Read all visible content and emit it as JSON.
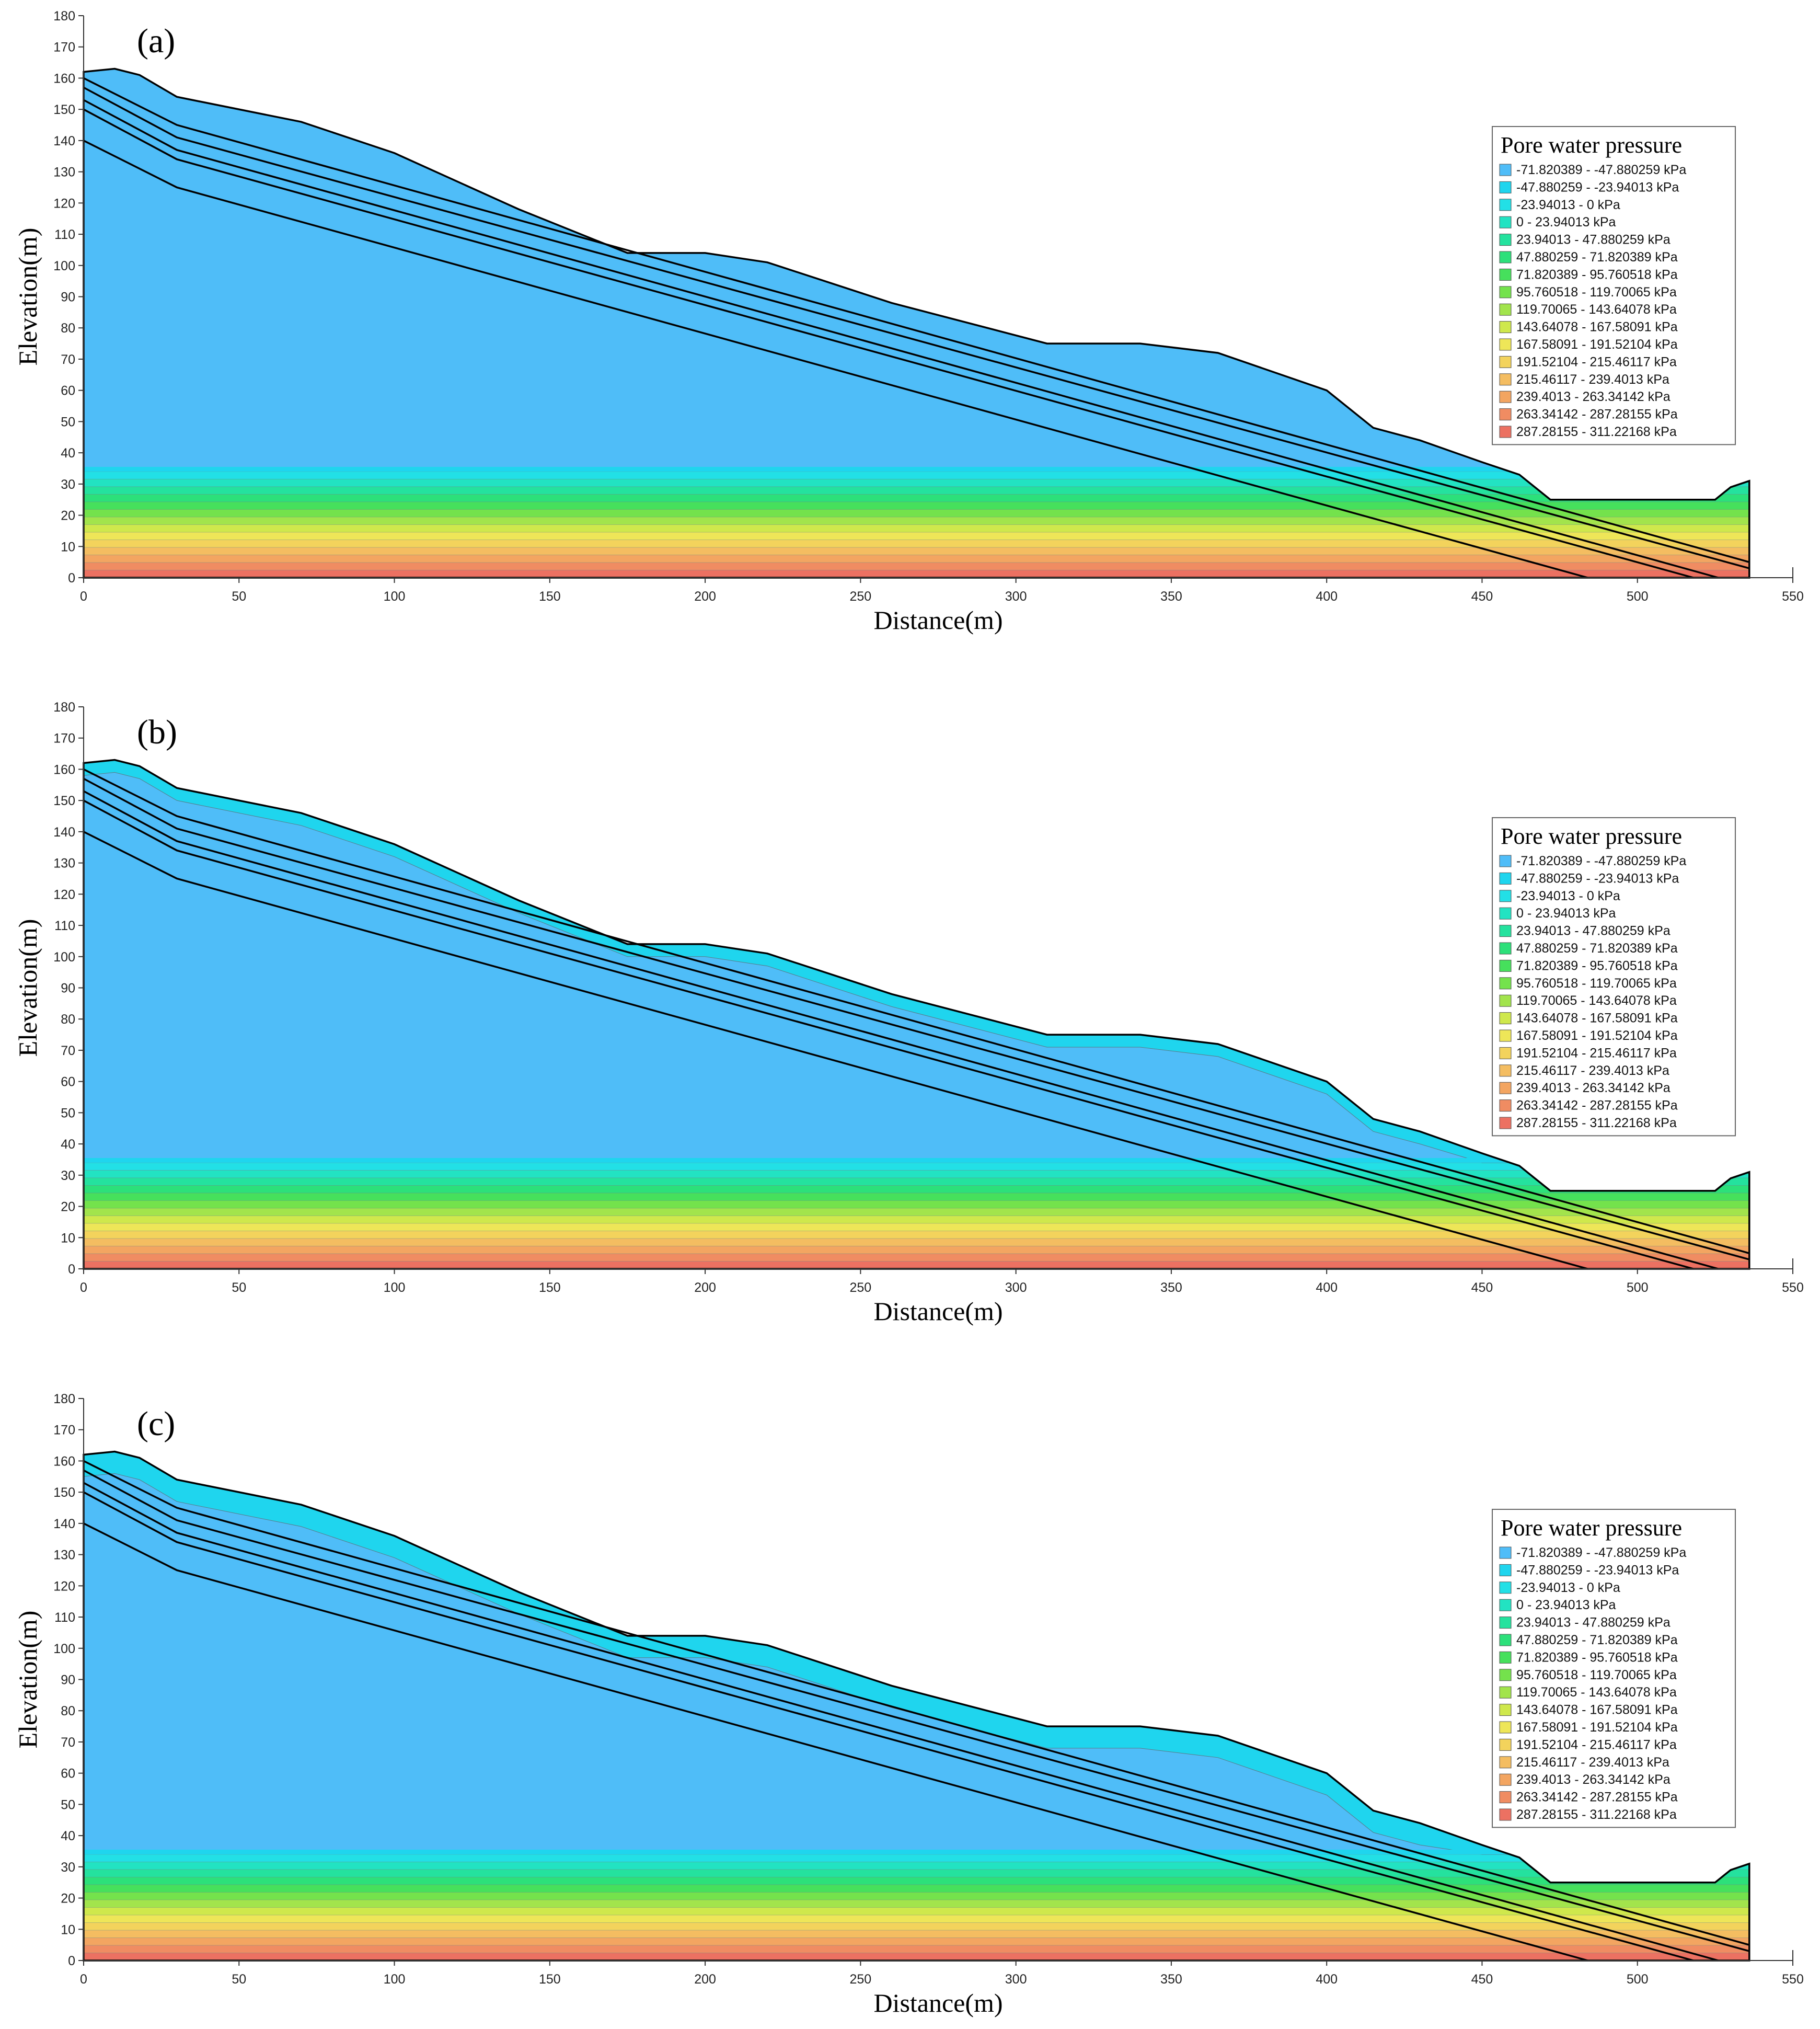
{
  "colors": {
    "band_surface": "#4fbdf8",
    "band_near_surface": "#1fd5ee",
    "bands_below_water_table": [
      "#22e0e6",
      "#22e3c2",
      "#24e29e",
      "#2ce07a",
      "#46e05c",
      "#74e24c",
      "#a2e44c",
      "#cfe84c",
      "#eee658",
      "#f3d35c",
      "#f4bd61",
      "#f3a561",
      "#f08c62",
      "#ec7162"
    ]
  },
  "chart_data": [
    {
      "type": "area",
      "panel_label": "(a)",
      "xlabel": "Distance(m)",
      "ylabel": "Elevation(m)",
      "xlim": [
        0,
        550
      ],
      "ylim": [
        0,
        180
      ],
      "x_ticks": [
        0,
        50,
        100,
        150,
        200,
        250,
        300,
        350,
        400,
        450,
        500,
        550
      ],
      "y_ticks": [
        0,
        10,
        20,
        30,
        40,
        50,
        60,
        70,
        80,
        90,
        100,
        110,
        120,
        130,
        140,
        150,
        160,
        170,
        180
      ],
      "grid": false,
      "legend_placement": "right",
      "legend": {
        "title": "Pore water pressure",
        "entries": [
          {
            "label": "-71.820389 - -47.880259 kPa",
            "color": "#4fbdf8"
          },
          {
            "label": "-47.880259 - -23.94013 kPa",
            "color": "#1fd5ee"
          },
          {
            "label": "-23.94013 - 0 kPa",
            "color": "#22e0e6"
          },
          {
            "label": "0 - 23.94013 kPa",
            "color": "#22e3c2"
          },
          {
            "label": "23.94013 - 47.880259 kPa",
            "color": "#24e29e"
          },
          {
            "label": "47.880259 - 71.820389 kPa",
            "color": "#2ce07a"
          },
          {
            "label": "71.820389 - 95.760518 kPa",
            "color": "#46e05c"
          },
          {
            "label": "95.760518 - 119.70065 kPa",
            "color": "#74e24c"
          },
          {
            "label": "119.70065 - 143.64078 kPa",
            "color": "#a2e44c"
          },
          {
            "label": "143.64078 - 167.58091 kPa",
            "color": "#cfe84c"
          },
          {
            "label": "167.58091 - 191.52104 kPa",
            "color": "#eee658"
          },
          {
            "label": "191.52104 - 215.46117 kPa",
            "color": "#f3d35c"
          },
          {
            "label": "215.46117 - 239.4013 kPa",
            "color": "#f4bd61"
          },
          {
            "label": "239.4013 - 263.34142 kPa",
            "color": "#f3a561"
          },
          {
            "label": "263.34142 - 287.28155 kPa",
            "color": "#f08c62"
          },
          {
            "label": "287.28155 - 311.22168 kPa",
            "color": "#ec7162"
          }
        ]
      },
      "ground_surface": [
        [
          0,
          162
        ],
        [
          10,
          163
        ],
        [
          18,
          161
        ],
        [
          30,
          154
        ],
        [
          70,
          146
        ],
        [
          100,
          136
        ],
        [
          140,
          118
        ],
        [
          175,
          104
        ],
        [
          200,
          104
        ],
        [
          220,
          101
        ],
        [
          260,
          88
        ],
        [
          310,
          75
        ],
        [
          340,
          75
        ],
        [
          365,
          72
        ],
        [
          400,
          60
        ],
        [
          415,
          48
        ],
        [
          430,
          44
        ],
        [
          450,
          37
        ],
        [
          462,
          33
        ],
        [
          472,
          25
        ],
        [
          525,
          25
        ],
        [
          530,
          29
        ],
        [
          536,
          31
        ],
        [
          536,
          0
        ]
      ],
      "layer_boundaries": [
        [
          [
            0,
            160
          ],
          [
            30,
            145
          ],
          [
            536,
            5
          ]
        ],
        [
          [
            0,
            157
          ],
          [
            30,
            141
          ],
          [
            536,
            3
          ]
        ],
        [
          [
            0,
            153
          ],
          [
            30,
            137
          ],
          [
            526,
            0
          ]
        ],
        [
          [
            0,
            150
          ],
          [
            30,
            134
          ],
          [
            518,
            0
          ]
        ],
        [
          [
            0,
            140
          ],
          [
            30,
            125
          ],
          [
            484,
            0
          ]
        ]
      ],
      "water_table_elevation": 34,
      "near_surface_zone_depth": 0
    },
    {
      "type": "area",
      "panel_label": "(b)",
      "xlabel": "Distance(m)",
      "ylabel": "Elevation(m)",
      "xlim": [
        0,
        550
      ],
      "ylim": [
        0,
        180
      ],
      "x_ticks": [
        0,
        50,
        100,
        150,
        200,
        250,
        300,
        350,
        400,
        450,
        500,
        550
      ],
      "y_ticks": [
        0,
        10,
        20,
        30,
        40,
        50,
        60,
        70,
        80,
        90,
        100,
        110,
        120,
        130,
        140,
        150,
        160,
        170,
        180
      ],
      "grid": false,
      "legend_placement": "right",
      "legend": {
        "title": "Pore water pressure",
        "entries": [
          {
            "label": "-71.820389 - -47.880259 kPa",
            "color": "#4fbdf8"
          },
          {
            "label": "-47.880259 - -23.94013 kPa",
            "color": "#1fd5ee"
          },
          {
            "label": "-23.94013 - 0 kPa",
            "color": "#22e0e6"
          },
          {
            "label": "0 - 23.94013 kPa",
            "color": "#22e3c2"
          },
          {
            "label": "23.94013 - 47.880259 kPa",
            "color": "#24e29e"
          },
          {
            "label": "47.880259 - 71.820389 kPa",
            "color": "#2ce07a"
          },
          {
            "label": "71.820389 - 95.760518 kPa",
            "color": "#46e05c"
          },
          {
            "label": "95.760518 - 119.70065 kPa",
            "color": "#74e24c"
          },
          {
            "label": "119.70065 - 143.64078 kPa",
            "color": "#a2e44c"
          },
          {
            "label": "143.64078 - 167.58091 kPa",
            "color": "#cfe84c"
          },
          {
            "label": "167.58091 - 191.52104 kPa",
            "color": "#eee658"
          },
          {
            "label": "191.52104 - 215.46117 kPa",
            "color": "#f3d35c"
          },
          {
            "label": "215.46117 - 239.4013 kPa",
            "color": "#f4bd61"
          },
          {
            "label": "239.4013 - 263.34142 kPa",
            "color": "#f3a561"
          },
          {
            "label": "263.34142 - 287.28155 kPa",
            "color": "#f08c62"
          },
          {
            "label": "287.28155 - 311.22168 kPa",
            "color": "#ec7162"
          }
        ]
      },
      "ground_surface": [
        [
          0,
          162
        ],
        [
          10,
          163
        ],
        [
          18,
          161
        ],
        [
          30,
          154
        ],
        [
          70,
          146
        ],
        [
          100,
          136
        ],
        [
          140,
          118
        ],
        [
          175,
          104
        ],
        [
          200,
          104
        ],
        [
          220,
          101
        ],
        [
          260,
          88
        ],
        [
          310,
          75
        ],
        [
          340,
          75
        ],
        [
          365,
          72
        ],
        [
          400,
          60
        ],
        [
          415,
          48
        ],
        [
          430,
          44
        ],
        [
          450,
          37
        ],
        [
          462,
          33
        ],
        [
          472,
          25
        ],
        [
          525,
          25
        ],
        [
          530,
          29
        ],
        [
          536,
          31
        ],
        [
          536,
          0
        ]
      ],
      "layer_boundaries": [
        [
          [
            0,
            160
          ],
          [
            30,
            145
          ],
          [
            536,
            5
          ]
        ],
        [
          [
            0,
            157
          ],
          [
            30,
            141
          ],
          [
            536,
            3
          ]
        ],
        [
          [
            0,
            153
          ],
          [
            30,
            137
          ],
          [
            526,
            0
          ]
        ],
        [
          [
            0,
            150
          ],
          [
            30,
            134
          ],
          [
            518,
            0
          ]
        ],
        [
          [
            0,
            140
          ],
          [
            30,
            125
          ],
          [
            484,
            0
          ]
        ]
      ],
      "water_table_elevation": 34,
      "near_surface_zone_depth": 4
    },
    {
      "type": "area",
      "panel_label": "(c)",
      "xlabel": "Distance(m)",
      "ylabel": "Elevation(m)",
      "xlim": [
        0,
        550
      ],
      "ylim": [
        0,
        180
      ],
      "x_ticks": [
        0,
        50,
        100,
        150,
        200,
        250,
        300,
        350,
        400,
        450,
        500,
        550
      ],
      "y_ticks": [
        0,
        10,
        20,
        30,
        40,
        50,
        60,
        70,
        80,
        90,
        100,
        110,
        120,
        130,
        140,
        150,
        160,
        170,
        180
      ],
      "grid": false,
      "legend_placement": "right",
      "legend": {
        "title": "Pore water pressure",
        "entries": [
          {
            "label": "-71.820389 - -47.880259 kPa",
            "color": "#4fbdf8"
          },
          {
            "label": "-47.880259 - -23.94013 kPa",
            "color": "#1fd5ee"
          },
          {
            "label": "-23.94013 - 0 kPa",
            "color": "#22e0e6"
          },
          {
            "label": "0 - 23.94013 kPa",
            "color": "#22e3c2"
          },
          {
            "label": "23.94013 - 47.880259 kPa",
            "color": "#24e29e"
          },
          {
            "label": "47.880259 - 71.820389 kPa",
            "color": "#2ce07a"
          },
          {
            "label": "71.820389 - 95.760518 kPa",
            "color": "#46e05c"
          },
          {
            "label": "95.760518 - 119.70065 kPa",
            "color": "#74e24c"
          },
          {
            "label": "119.70065 - 143.64078 kPa",
            "color": "#a2e44c"
          },
          {
            "label": "143.64078 - 167.58091 kPa",
            "color": "#cfe84c"
          },
          {
            "label": "167.58091 - 191.52104 kPa",
            "color": "#eee658"
          },
          {
            "label": "191.52104 - 215.46117 kPa",
            "color": "#f3d35c"
          },
          {
            "label": "215.46117 - 239.4013 kPa",
            "color": "#f4bd61"
          },
          {
            "label": "239.4013 - 263.34142 kPa",
            "color": "#f3a561"
          },
          {
            "label": "263.34142 - 287.28155 kPa",
            "color": "#f08c62"
          },
          {
            "label": "287.28155 - 311.22168 kPa",
            "color": "#ec7162"
          }
        ]
      },
      "ground_surface": [
        [
          0,
          162
        ],
        [
          10,
          163
        ],
        [
          18,
          161
        ],
        [
          30,
          154
        ],
        [
          70,
          146
        ],
        [
          100,
          136
        ],
        [
          140,
          118
        ],
        [
          175,
          104
        ],
        [
          200,
          104
        ],
        [
          220,
          101
        ],
        [
          260,
          88
        ],
        [
          310,
          75
        ],
        [
          340,
          75
        ],
        [
          365,
          72
        ],
        [
          400,
          60
        ],
        [
          415,
          48
        ],
        [
          430,
          44
        ],
        [
          450,
          37
        ],
        [
          462,
          33
        ],
        [
          472,
          25
        ],
        [
          525,
          25
        ],
        [
          530,
          29
        ],
        [
          536,
          31
        ],
        [
          536,
          0
        ]
      ],
      "layer_boundaries": [
        [
          [
            0,
            160
          ],
          [
            30,
            145
          ],
          [
            536,
            5
          ]
        ],
        [
          [
            0,
            157
          ],
          [
            30,
            141
          ],
          [
            536,
            3
          ]
        ],
        [
          [
            0,
            153
          ],
          [
            30,
            137
          ],
          [
            526,
            0
          ]
        ],
        [
          [
            0,
            150
          ],
          [
            30,
            134
          ],
          [
            518,
            0
          ]
        ],
        [
          [
            0,
            140
          ],
          [
            30,
            125
          ],
          [
            484,
            0
          ]
        ]
      ],
      "water_table_elevation": 34,
      "near_surface_zone_depth": 7
    }
  ]
}
